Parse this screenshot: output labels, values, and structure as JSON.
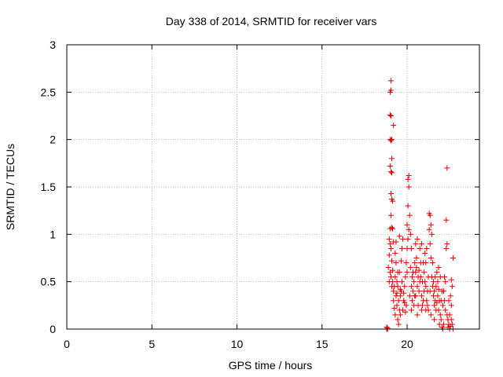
{
  "chart_data": {
    "type": "scatter",
    "title": "Day 338 of 2014, SRMTID for receiver vars",
    "xlabel": "GPS time / hours",
    "ylabel": "SRMTID / TECUs",
    "xlim": [
      0,
      24.25
    ],
    "ylim": [
      0,
      3
    ],
    "xticks": [
      0,
      5,
      10,
      15,
      20
    ],
    "xtick_labels": [
      "0",
      "5",
      "10",
      "15",
      "20"
    ],
    "yticks": [
      0,
      0.5,
      1,
      1.5,
      2,
      2.5,
      3
    ],
    "ytick_labels": [
      "0",
      "0.5",
      "1",
      "1.5",
      "2",
      "2.5",
      "3"
    ],
    "grid": true,
    "marker": "plus",
    "color": "#dd0000",
    "series": [
      {
        "name": "SRMTID",
        "points": [
          [
            18.8,
            0.0
          ],
          [
            18.85,
            0.01
          ],
          [
            18.8,
            0.02
          ],
          [
            18.85,
            0.0
          ],
          [
            19.05,
            2.62
          ],
          [
            19.0,
            2.5
          ],
          [
            19.05,
            2.52
          ],
          [
            19.0,
            2.26
          ],
          [
            19.05,
            2.25
          ],
          [
            19.0,
            2.0
          ],
          [
            19.1,
            2.0
          ],
          [
            19.05,
            1.99
          ],
          [
            19.1,
            1.8
          ],
          [
            19.0,
            1.72
          ],
          [
            19.05,
            1.66
          ],
          [
            19.1,
            1.65
          ],
          [
            19.05,
            1.43
          ],
          [
            19.1,
            1.37
          ],
          [
            19.15,
            1.35
          ],
          [
            19.05,
            1.2
          ],
          [
            19.1,
            1.07
          ],
          [
            19.0,
            1.06
          ],
          [
            19.15,
            1.06
          ],
          [
            19.2,
            2.15
          ],
          [
            18.95,
            0.95
          ],
          [
            19.0,
            0.9
          ],
          [
            19.05,
            0.85
          ],
          [
            18.95,
            0.78
          ],
          [
            19.1,
            0.72
          ],
          [
            18.9,
            0.65
          ],
          [
            19.0,
            0.6
          ],
          [
            19.05,
            0.55
          ],
          [
            18.95,
            0.5
          ],
          [
            19.1,
            0.45
          ],
          [
            19.2,
            0.4
          ],
          [
            19.15,
            0.62
          ],
          [
            19.2,
            0.92
          ],
          [
            19.3,
            0.8
          ],
          [
            19.35,
            0.7
          ],
          [
            19.3,
            0.55
          ],
          [
            19.4,
            0.5
          ],
          [
            19.45,
            0.45
          ],
          [
            19.35,
            0.35
          ],
          [
            19.5,
            0.3
          ],
          [
            19.4,
            0.25
          ],
          [
            19.55,
            0.2
          ],
          [
            19.6,
            0.15
          ],
          [
            19.5,
            0.05
          ],
          [
            19.45,
            0.1
          ],
          [
            19.6,
            0.35
          ],
          [
            19.65,
            0.4
          ],
          [
            19.7,
            0.5
          ],
          [
            19.55,
            0.6
          ],
          [
            19.65,
            0.72
          ],
          [
            19.7,
            0.85
          ],
          [
            19.75,
            0.95
          ],
          [
            19.8,
            0.3
          ],
          [
            19.85,
            0.28
          ],
          [
            19.75,
            0.2
          ],
          [
            19.9,
            0.18
          ],
          [
            19.95,
            0.25
          ],
          [
            19.85,
            0.45
          ],
          [
            19.9,
            0.55
          ],
          [
            20.0,
            0.6
          ],
          [
            19.95,
            0.7
          ],
          [
            20.0,
            0.85
          ],
          [
            20.05,
            0.95
          ],
          [
            20.1,
            1.05
          ],
          [
            20.0,
            1.1
          ],
          [
            20.05,
            1.3
          ],
          [
            20.1,
            1.5
          ],
          [
            20.05,
            1.58
          ],
          [
            20.1,
            1.62
          ],
          [
            20.15,
            1.2
          ],
          [
            20.2,
            1.0
          ],
          [
            20.25,
            0.85
          ],
          [
            20.2,
            0.65
          ],
          [
            20.3,
            0.55
          ],
          [
            20.25,
            0.45
          ],
          [
            20.35,
            0.4
          ],
          [
            20.3,
            0.3
          ],
          [
            20.4,
            0.25
          ],
          [
            20.45,
            0.35
          ],
          [
            20.4,
            0.5
          ],
          [
            20.5,
            0.6
          ],
          [
            20.45,
            0.7
          ],
          [
            20.55,
            0.75
          ],
          [
            20.5,
            0.9
          ],
          [
            20.6,
            0.95
          ],
          [
            20.55,
            0.65
          ],
          [
            20.65,
            0.55
          ],
          [
            20.6,
            0.45
          ],
          [
            20.7,
            0.4
          ],
          [
            20.75,
            0.5
          ],
          [
            20.7,
            0.62
          ],
          [
            20.8,
            0.7
          ],
          [
            20.75,
            0.85
          ],
          [
            20.85,
            0.9
          ],
          [
            20.8,
            0.55
          ],
          [
            20.9,
            0.5
          ],
          [
            20.85,
            0.35
          ],
          [
            20.95,
            0.3
          ],
          [
            20.9,
            0.25
          ],
          [
            21.0,
            0.4
          ],
          [
            21.05,
            0.5
          ],
          [
            21.0,
            0.6
          ],
          [
            21.1,
            0.7
          ],
          [
            21.05,
            0.8
          ],
          [
            21.15,
            0.85
          ],
          [
            21.1,
            0.45
          ],
          [
            21.2,
            0.4
          ],
          [
            21.15,
            0.3
          ],
          [
            21.25,
            0.2
          ],
          [
            21.2,
            0.25
          ],
          [
            21.3,
            1.22
          ],
          [
            21.35,
            1.2
          ],
          [
            21.4,
            1.1
          ],
          [
            21.3,
            1.05
          ],
          [
            21.45,
            1.0
          ],
          [
            21.35,
            0.9
          ],
          [
            21.4,
            0.75
          ],
          [
            21.5,
            0.7
          ],
          [
            21.45,
            0.55
          ],
          [
            21.55,
            0.5
          ],
          [
            21.5,
            0.45
          ],
          [
            21.6,
            0.4
          ],
          [
            21.55,
            0.35
          ],
          [
            21.65,
            0.3
          ],
          [
            21.6,
            0.25
          ],
          [
            21.7,
            0.2
          ],
          [
            21.75,
            0.28
          ],
          [
            21.7,
            0.45
          ],
          [
            21.8,
            0.5
          ],
          [
            21.75,
            0.6
          ],
          [
            21.85,
            0.65
          ],
          [
            21.8,
            0.35
          ],
          [
            21.9,
            0.3
          ],
          [
            21.85,
            0.2
          ],
          [
            21.95,
            0.15
          ],
          [
            21.9,
            0.05
          ],
          [
            22.0,
            0.1
          ],
          [
            22.05,
            0.02
          ],
          [
            22.1,
            0.0
          ],
          [
            22.15,
            0.05
          ],
          [
            22.1,
            0.25
          ],
          [
            22.2,
            0.3
          ],
          [
            22.15,
            0.4
          ],
          [
            22.25,
            0.5
          ],
          [
            22.2,
            0.55
          ],
          [
            22.3,
            0.85
          ],
          [
            22.35,
            0.9
          ],
          [
            22.3,
            1.15
          ],
          [
            22.35,
            1.7
          ],
          [
            22.4,
            0.1
          ],
          [
            22.45,
            0.05
          ],
          [
            22.4,
            0.02
          ],
          [
            22.5,
            0.0
          ],
          [
            22.55,
            0.03
          ],
          [
            22.5,
            0.15
          ],
          [
            22.6,
            0.25
          ],
          [
            22.55,
            0.35
          ],
          [
            22.65,
            0.45
          ],
          [
            22.6,
            0.52
          ],
          [
            22.7,
            0.75
          ],
          [
            22.65,
            0.05
          ],
          [
            22.7,
            0.0
          ],
          [
            21.4,
            0.15
          ],
          [
            21.6,
            0.1
          ],
          [
            20.6,
            0.15
          ],
          [
            19.2,
            0.3
          ],
          [
            19.25,
            0.22
          ],
          [
            19.3,
            0.15
          ],
          [
            19.45,
            0.6
          ],
          [
            19.35,
            0.92
          ],
          [
            19.55,
            0.98
          ],
          [
            20.15,
            0.35
          ],
          [
            20.35,
            0.6
          ],
          [
            20.95,
            0.7
          ],
          [
            21.25,
            0.55
          ],
          [
            21.95,
            0.55
          ],
          [
            22.05,
            0.4
          ],
          [
            22.25,
            0.2
          ],
          [
            22.45,
            0.3
          ],
          [
            19.15,
            0.5
          ],
          [
            19.25,
            0.45
          ],
          [
            19.4,
            0.38
          ],
          [
            19.6,
            0.42
          ],
          [
            19.8,
            0.38
          ],
          [
            20.25,
            0.2
          ],
          [
            20.5,
            0.35
          ],
          [
            20.65,
            0.25
          ],
          [
            20.85,
            0.2
          ],
          [
            21.1,
            0.2
          ],
          [
            21.35,
            0.4
          ],
          [
            21.65,
            0.55
          ],
          [
            21.85,
            0.42
          ],
          [
            22.0,
            0.3
          ],
          [
            22.35,
            0.15
          ],
          [
            22.6,
            0.1
          ]
        ]
      }
    ]
  }
}
